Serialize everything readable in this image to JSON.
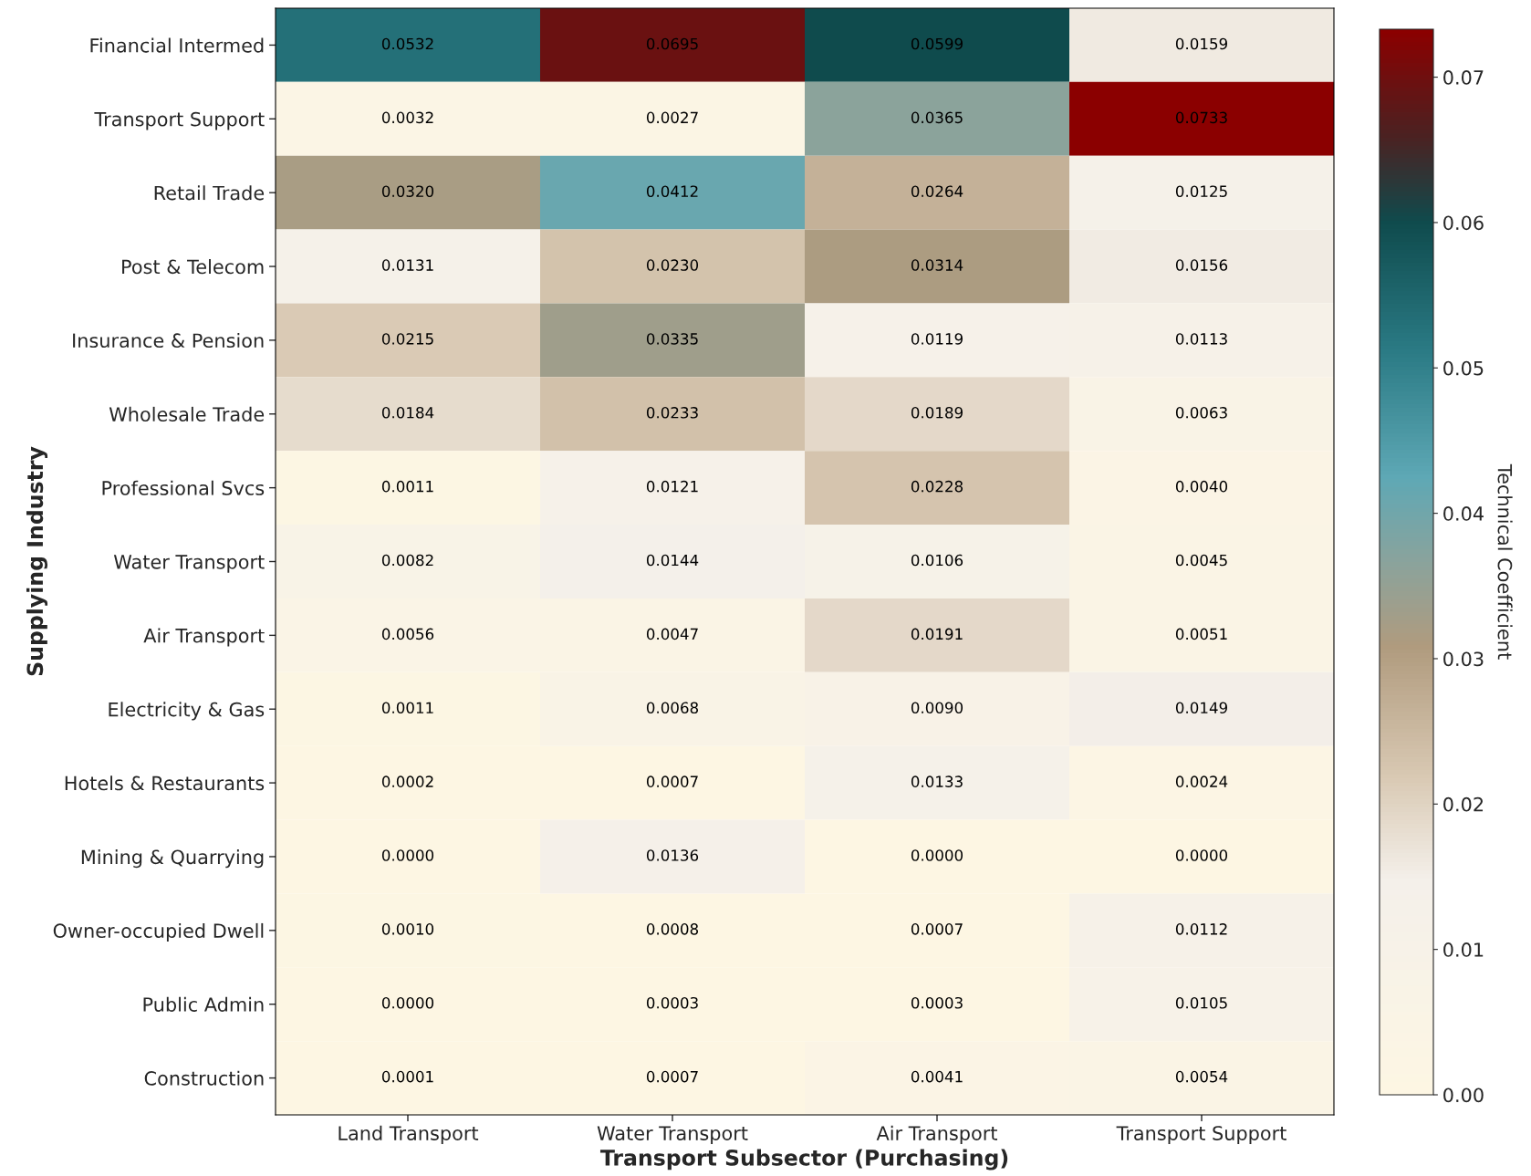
{
  "chart_data": {
    "type": "heatmap",
    "xlabel": "Transport Subsector (Purchasing)",
    "ylabel": "Supplying Industry",
    "clabel": "Technical Coefficient",
    "categories": [
      "Land Transport",
      "Water Transport",
      "Air Transport",
      "Transport Support"
    ],
    "y_categories": [
      "Financial Intermed",
      "Transport Support",
      "Retail Trade",
      "Post & Telecom",
      "Insurance & Pension",
      "Wholesale Trade",
      "Professional Svcs",
      "Water Transport",
      "Air Transport",
      "Electricity & Gas",
      "Hotels & Restaurants",
      "Mining & Quarrying",
      "Owner-occupied Dwell",
      "Public Admin",
      "Construction"
    ],
    "cells": [
      [
        0.0532,
        0.0695,
        0.0599,
        0.0159
      ],
      [
        0.0032,
        0.0027,
        0.0365,
        0.0733
      ],
      [
        0.032,
        0.0412,
        0.0264,
        0.0125
      ],
      [
        0.0131,
        0.023,
        0.0314,
        0.0156
      ],
      [
        0.0215,
        0.0335,
        0.0119,
        0.0113
      ],
      [
        0.0184,
        0.0233,
        0.0189,
        0.0063
      ],
      [
        0.0011,
        0.0121,
        0.0228,
        0.004
      ],
      [
        0.0082,
        0.0144,
        0.0106,
        0.0045
      ],
      [
        0.0056,
        0.0047,
        0.0191,
        0.0051
      ],
      [
        0.0011,
        0.0068,
        0.009,
        0.0149
      ],
      [
        0.0002,
        0.0007,
        0.0133,
        0.0024
      ],
      [
        0.0,
        0.0136,
        0.0,
        0.0
      ],
      [
        0.001,
        0.0008,
        0.0007,
        0.0112
      ],
      [
        0.0,
        0.0003,
        0.0003,
        0.0105
      ],
      [
        0.0001,
        0.0007,
        0.0041,
        0.0054
      ]
    ],
    "cell_labels": [
      [
        "0.0532",
        "0.0695",
        "0.0599",
        "0.0159"
      ],
      [
        "0.0032",
        "0.0027",
        "0.0365",
        "0.0733"
      ],
      [
        "0.0320",
        "0.0412",
        "0.0264",
        "0.0125"
      ],
      [
        "0.0131",
        "0.0230",
        "0.0314",
        "0.0156"
      ],
      [
        "0.0215",
        "0.0335",
        "0.0119",
        "0.0113"
      ],
      [
        "0.0184",
        "0.0233",
        "0.0189",
        "0.0063"
      ],
      [
        "0.0011",
        "0.0121",
        "0.0228",
        "0.0040"
      ],
      [
        "0.0082",
        "0.0144",
        "0.0106",
        "0.0045"
      ],
      [
        "0.0056",
        "0.0047",
        "0.0191",
        "0.0051"
      ],
      [
        "0.0011",
        "0.0068",
        "0.0090",
        "0.0149"
      ],
      [
        "0.0002",
        "0.0007",
        "0.0133",
        "0.0024"
      ],
      [
        "0.0000",
        "0.0136",
        "0.0000",
        "0.0000"
      ],
      [
        "0.0010",
        "0.0008",
        "0.0007",
        "0.0112"
      ],
      [
        "0.0000",
        "0.0003",
        "0.0003",
        "0.0105"
      ],
      [
        "0.0001",
        "0.0007",
        "0.0041",
        "0.0054"
      ]
    ],
    "clim": [
      0,
      0.0733
    ],
    "cticks": [
      {
        "value": 0,
        "label": "0.00"
      },
      {
        "value": 0.01,
        "label": "0.01"
      },
      {
        "value": 0.02,
        "label": "0.02"
      },
      {
        "value": 0.03,
        "label": "0.03"
      },
      {
        "value": 0.04,
        "label": "0.04"
      },
      {
        "value": 0.05,
        "label": "0.05"
      },
      {
        "value": 0.06,
        "label": "0.06"
      },
      {
        "value": 0.07,
        "label": "0.07"
      }
    ]
  }
}
